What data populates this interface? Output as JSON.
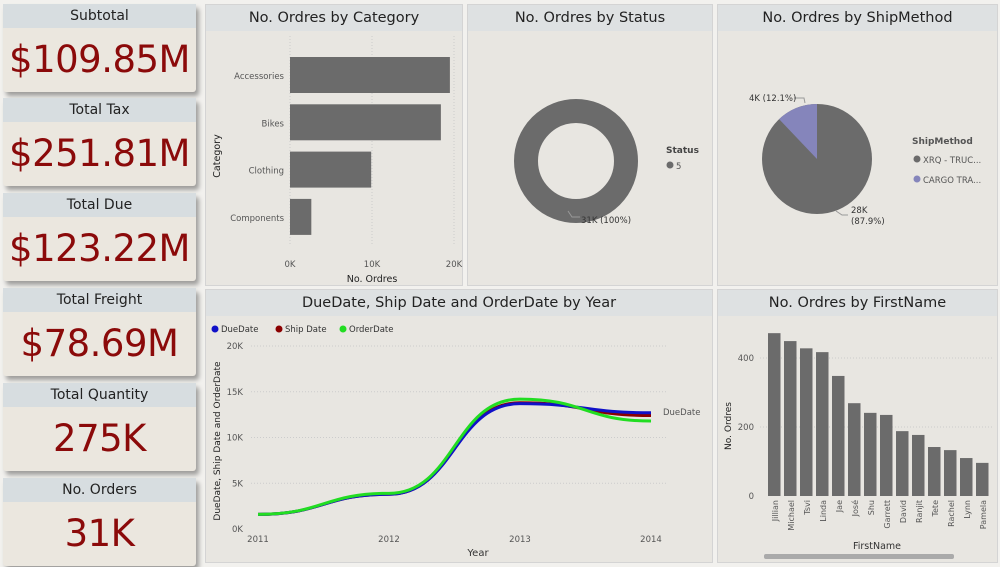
{
  "cards": [
    {
      "label": "Subtotal",
      "value": "$109.85M"
    },
    {
      "label": "Total Tax",
      "value": "$251.81M"
    },
    {
      "label": "Total Due",
      "value": "$123.22M"
    },
    {
      "label": "Total Freight",
      "value": "$78.69M"
    },
    {
      "label": "Total Quantity",
      "value": "275K"
    },
    {
      "label": "No. Orders",
      "value": "31K"
    }
  ],
  "colors": {
    "bar": "#6b6b6b",
    "pie2": "#8585bb",
    "kpi": "#8b0a0a",
    "due": "#1010c8",
    "ship": "#8b0000",
    "order": "#22dd22"
  },
  "chart_data": [
    {
      "type": "bar",
      "orientation": "horizontal",
      "title": "No. Ordres by Category",
      "xlabel": "No. Ordres",
      "ylabel": "Category",
      "categories": [
        "Accessories",
        "Bikes",
        "Clothing",
        "Components"
      ],
      "values": [
        19500,
        18400,
        9900,
        2600
      ],
      "xticks": [
        "0K",
        "10K",
        "20K"
      ],
      "xlim": [
        0,
        20000
      ]
    },
    {
      "type": "pie",
      "donut": true,
      "title": "No. Ordres by Status",
      "legend_title": "Status",
      "categories": [
        "5"
      ],
      "values": [
        31000
      ],
      "labels": [
        "31K (100%)"
      ]
    },
    {
      "type": "pie",
      "title": "No. Ordres by ShipMethod",
      "legend_title": "ShipMethod",
      "categories": [
        "XRQ - TRUC...",
        "CARGO TRA..."
      ],
      "values": [
        28000,
        4000
      ],
      "labels": [
        "28K (87.9%)",
        "4K (12.1%)"
      ],
      "label_lines": [
        [
          "28K",
          "(87.9%)"
        ],
        [
          "4K (12.1%)"
        ]
      ],
      "percent": [
        87.9,
        12.1
      ]
    },
    {
      "type": "line",
      "title": "DueDate, Ship Date and OrderDate by Year",
      "xlabel": "Year",
      "ylabel": "DueDate, Ship Date and OrderDate",
      "x": [
        "2011",
        "2012",
        "2013",
        "2014"
      ],
      "ylim": [
        0,
        20000
      ],
      "yticks": [
        "0K",
        "5K",
        "10K",
        "15K",
        "20K"
      ],
      "end_label": "DueDate",
      "series": [
        {
          "name": "DueDate",
          "values": [
            1600,
            3800,
            13700,
            12700
          ]
        },
        {
          "name": "Ship Date",
          "values": [
            1600,
            3800,
            13800,
            12400
          ]
        },
        {
          "name": "OrderDate",
          "values": [
            1600,
            3900,
            14200,
            11800
          ]
        }
      ]
    },
    {
      "type": "bar",
      "title": "No. Ordres by FirstName",
      "xlabel": "FirstName",
      "ylabel": "No. Ordres",
      "ylim": [
        0,
        500
      ],
      "yticks": [
        "0",
        "200",
        "400"
      ],
      "categories": [
        "Jillian",
        "Michael",
        "Tsvi",
        "Linda",
        "Jae",
        "José",
        "Shu",
        "Garrett",
        "David",
        "Ranjit",
        "Tete",
        "Rachel",
        "Lynn",
        "Pamela"
      ],
      "values": [
        472,
        449,
        428,
        417,
        348,
        269,
        241,
        235,
        188,
        177,
        142,
        133,
        110,
        96
      ]
    }
  ]
}
